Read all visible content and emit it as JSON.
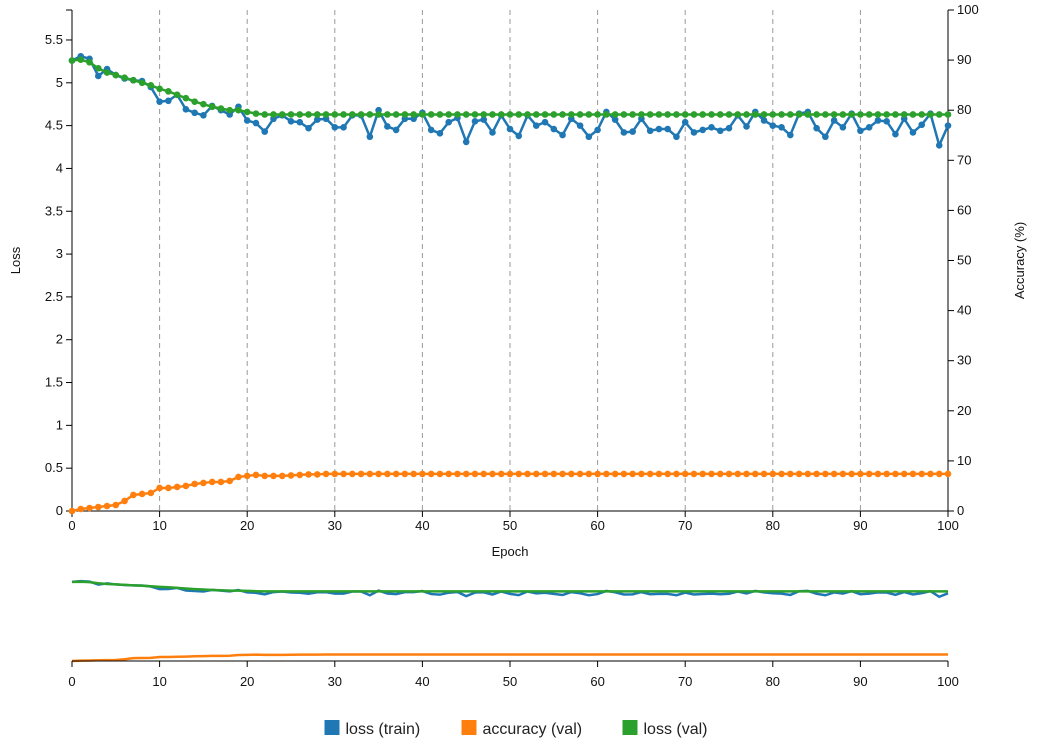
{
  "chart_data": {
    "type": "line",
    "x_label": "Epoch",
    "y_label_left": "Loss",
    "y_label_right": "Accuracy (%)",
    "xlim": [
      0,
      100
    ],
    "ylim_left": [
      0,
      5.85
    ],
    "ylim_right": [
      0,
      100
    ],
    "x_ticks": [
      "0",
      "10",
      "20",
      "30",
      "40",
      "50",
      "60",
      "70",
      "80",
      "90",
      "100"
    ],
    "y_ticks_left": [
      "0",
      "0.5",
      "1",
      "1.5",
      "2",
      "2.5",
      "3",
      "3.5",
      "4",
      "4.5",
      "5",
      "5.5"
    ],
    "y_ticks_right": [
      "0",
      "10",
      "20",
      "30",
      "40",
      "50",
      "60",
      "70",
      "80",
      "90",
      "100"
    ],
    "vertical_grid": true,
    "legend_position": "bottom-center",
    "series": [
      {
        "name": "loss (train)",
        "axis": "left",
        "color": "#1f77b4",
        "values": [
          5.26,
          5.31,
          5.28,
          5.08,
          5.16,
          5.09,
          5.05,
          5.03,
          5.02,
          4.95,
          4.78,
          4.79,
          4.86,
          4.69,
          4.65,
          4.62,
          4.73,
          4.68,
          4.63,
          4.72,
          4.56,
          4.53,
          4.43,
          4.58,
          4.62,
          4.55,
          4.54,
          4.47,
          4.57,
          4.58,
          4.48,
          4.48,
          4.62,
          4.62,
          4.37,
          4.68,
          4.49,
          4.45,
          4.58,
          4.58,
          4.65,
          4.45,
          4.41,
          4.54,
          4.59,
          4.31,
          4.55,
          4.57,
          4.42,
          4.62,
          4.46,
          4.38,
          4.62,
          4.5,
          4.54,
          4.46,
          4.39,
          4.58,
          4.5,
          4.37,
          4.45,
          4.66,
          4.57,
          4.42,
          4.43,
          4.58,
          4.44,
          4.46,
          4.46,
          4.37,
          4.54,
          4.42,
          4.45,
          4.48,
          4.44,
          4.47,
          4.62,
          4.49,
          4.66,
          4.56,
          4.5,
          4.48,
          4.39,
          4.64,
          4.66,
          4.47,
          4.37,
          4.56,
          4.48,
          4.64,
          4.44,
          4.48,
          4.56,
          4.55,
          4.4,
          4.58,
          4.42,
          4.51,
          4.64,
          4.27,
          4.5
        ]
      },
      {
        "name": "accuracy (val)",
        "axis": "right",
        "color": "#ff7f0e",
        "values": [
          0.0,
          0.4,
          0.6,
          0.8,
          1.0,
          1.2,
          2.0,
          3.2,
          3.4,
          3.6,
          4.6,
          4.6,
          4.8,
          5.0,
          5.4,
          5.6,
          5.8,
          5.8,
          6.0,
          6.8,
          7.0,
          7.2,
          7.0,
          7.0,
          7.0,
          7.1,
          7.2,
          7.3,
          7.3,
          7.4,
          7.4,
          7.4,
          7.4,
          7.4,
          7.4,
          7.4,
          7.4,
          7.4,
          7.4,
          7.4,
          7.4,
          7.4,
          7.4,
          7.4,
          7.4,
          7.4,
          7.4,
          7.4,
          7.4,
          7.4,
          7.4,
          7.4,
          7.4,
          7.4,
          7.4,
          7.4,
          7.4,
          7.4,
          7.4,
          7.4,
          7.4,
          7.4,
          7.4,
          7.4,
          7.4,
          7.4,
          7.4,
          7.4,
          7.4,
          7.4,
          7.4,
          7.4,
          7.4,
          7.4,
          7.4,
          7.4,
          7.4,
          7.4,
          7.4,
          7.4,
          7.4,
          7.4,
          7.4,
          7.4,
          7.4,
          7.4,
          7.4,
          7.4,
          7.4,
          7.4,
          7.4,
          7.4,
          7.4,
          7.4,
          7.4,
          7.4,
          7.4,
          7.4,
          7.4,
          7.4,
          7.4
        ]
      },
      {
        "name": "loss (val)",
        "axis": "left",
        "color": "#2ca02c",
        "values": [
          5.26,
          5.27,
          5.24,
          5.17,
          5.12,
          5.09,
          5.06,
          5.03,
          5.0,
          4.97,
          4.93,
          4.9,
          4.86,
          4.82,
          4.78,
          4.75,
          4.72,
          4.7,
          4.68,
          4.68,
          4.66,
          4.64,
          4.63,
          4.63,
          4.63,
          4.63,
          4.63,
          4.63,
          4.63,
          4.63,
          4.63,
          4.63,
          4.63,
          4.63,
          4.63,
          4.63,
          4.63,
          4.63,
          4.63,
          4.63,
          4.63,
          4.63,
          4.63,
          4.63,
          4.63,
          4.63,
          4.63,
          4.63,
          4.63,
          4.63,
          4.63,
          4.63,
          4.63,
          4.63,
          4.63,
          4.63,
          4.63,
          4.63,
          4.63,
          4.63,
          4.63,
          4.63,
          4.63,
          4.63,
          4.63,
          4.63,
          4.63,
          4.63,
          4.63,
          4.63,
          4.63,
          4.63,
          4.63,
          4.63,
          4.63,
          4.63,
          4.63,
          4.63,
          4.63,
          4.63,
          4.63,
          4.63,
          4.63,
          4.63,
          4.63,
          4.63,
          4.63,
          4.63,
          4.63,
          4.63,
          4.63,
          4.63,
          4.63,
          4.63,
          4.63,
          4.63,
          4.63,
          4.63,
          4.63,
          4.63,
          4.63
        ]
      }
    ],
    "context_axis_ticks": [
      "0",
      "10",
      "20",
      "30",
      "40",
      "50",
      "60",
      "70",
      "80",
      "90",
      "100"
    ]
  }
}
